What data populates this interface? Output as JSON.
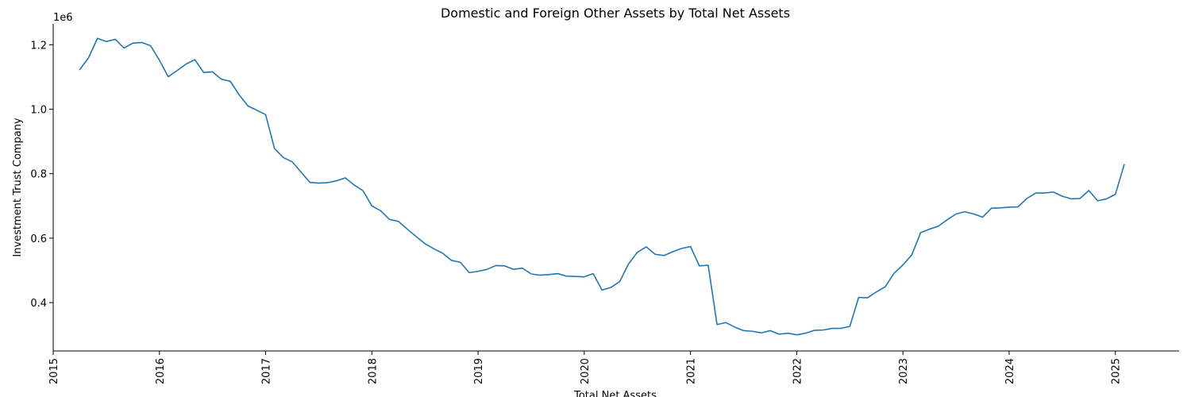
{
  "chart_data": {
    "type": "line",
    "title": "Domestic and Foreign Other Assets by Total Net Assets",
    "xlabel": "Total Net Assets",
    "ylabel": "Investment Trust Company",
    "y_offset_label": "1e6",
    "xlim": [
      2015,
      2025.6
    ],
    "ylim": [
      250000,
      1265000
    ],
    "x_ticks": [
      "2015",
      "2016",
      "2017",
      "2018",
      "2019",
      "2020",
      "2021",
      "2022",
      "2023",
      "2024",
      "2025"
    ],
    "y_ticks": [
      "0.4",
      "0.6",
      "0.8",
      "1.0",
      "1.2"
    ],
    "grid": false,
    "legend": false,
    "series": [
      {
        "color": "#1f77b4",
        "x": [
          "2015-04",
          "2015-05",
          "2015-06",
          "2015-07",
          "2015-08",
          "2015-09",
          "2015-10",
          "2015-11",
          "2015-12",
          "2016-01",
          "2016-02",
          "2016-03",
          "2016-04",
          "2016-05",
          "2016-06",
          "2016-07",
          "2016-08",
          "2016-09",
          "2016-10",
          "2016-11",
          "2016-12",
          "2017-01",
          "2017-02",
          "2017-03",
          "2017-04",
          "2017-05",
          "2017-06",
          "2017-07",
          "2017-08",
          "2017-09",
          "2017-10",
          "2017-11",
          "2017-12",
          "2018-01",
          "2018-02",
          "2018-03",
          "2018-04",
          "2018-05",
          "2018-06",
          "2018-07",
          "2018-08",
          "2018-09",
          "2018-10",
          "2018-11",
          "2018-12",
          "2019-01",
          "2019-02",
          "2019-03",
          "2019-04",
          "2019-05",
          "2019-06",
          "2019-07",
          "2019-08",
          "2019-09",
          "2019-10",
          "2019-11",
          "2019-12",
          "2020-01",
          "2020-02",
          "2020-03",
          "2020-04",
          "2020-05",
          "2020-06",
          "2020-07",
          "2020-08",
          "2020-09",
          "2020-10",
          "2020-11",
          "2020-12",
          "2021-01",
          "2021-02",
          "2021-03",
          "2021-04",
          "2021-05",
          "2021-06",
          "2021-07",
          "2021-08",
          "2021-09",
          "2021-10",
          "2021-11",
          "2021-12",
          "2022-01",
          "2022-02",
          "2022-03",
          "2022-04",
          "2022-05",
          "2022-06",
          "2022-07",
          "2022-08",
          "2022-09",
          "2022-10",
          "2022-11",
          "2022-12",
          "2023-01",
          "2023-02",
          "2023-03",
          "2023-04",
          "2023-05",
          "2023-06",
          "2023-07",
          "2023-08",
          "2023-09",
          "2023-10",
          "2023-11",
          "2023-12",
          "2024-01",
          "2024-02",
          "2024-03",
          "2024-04",
          "2024-05",
          "2024-06",
          "2024-07",
          "2024-08",
          "2024-09",
          "2024-10",
          "2024-11",
          "2024-12",
          "2025-01",
          "2025-02"
        ],
        "values": [
          1123000,
          1160000,
          1220000,
          1210000,
          1217000,
          1190000,
          1205000,
          1207000,
          1197000,
          1152000,
          1101000,
          1120000,
          1140000,
          1154000,
          1114000,
          1116000,
          1093000,
          1087000,
          1045000,
          1010000,
          997000,
          983000,
          878000,
          850000,
          837000,
          805000,
          773000,
          771000,
          772000,
          778000,
          787000,
          765000,
          747000,
          700000,
          685000,
          658000,
          652000,
          628000,
          605000,
          583000,
          567000,
          553000,
          531000,
          525000,
          493000,
          497000,
          503000,
          515000,
          514000,
          503000,
          507000,
          489000,
          485000,
          487000,
          490000,
          482000,
          481000,
          480000,
          490000,
          439000,
          447000,
          465000,
          520000,
          556000,
          573000,
          550000,
          546000,
          558000,
          568000,
          574000,
          514000,
          516000,
          332000,
          338000,
          324000,
          313000,
          311000,
          306000,
          313000,
          302000,
          305000,
          300000,
          305000,
          314000,
          315000,
          320000,
          320000,
          326000,
          416000,
          415000,
          433000,
          449000,
          491000,
          517000,
          548000,
          617000,
          628000,
          637000,
          657000,
          675000,
          682000,
          675000,
          665000,
          693000,
          694000,
          696000,
          697000,
          723000,
          740000,
          740000,
          743000,
          730000,
          722000,
          723000,
          748000,
          716000,
          722000,
          736000,
          828000
        ]
      }
    ]
  }
}
